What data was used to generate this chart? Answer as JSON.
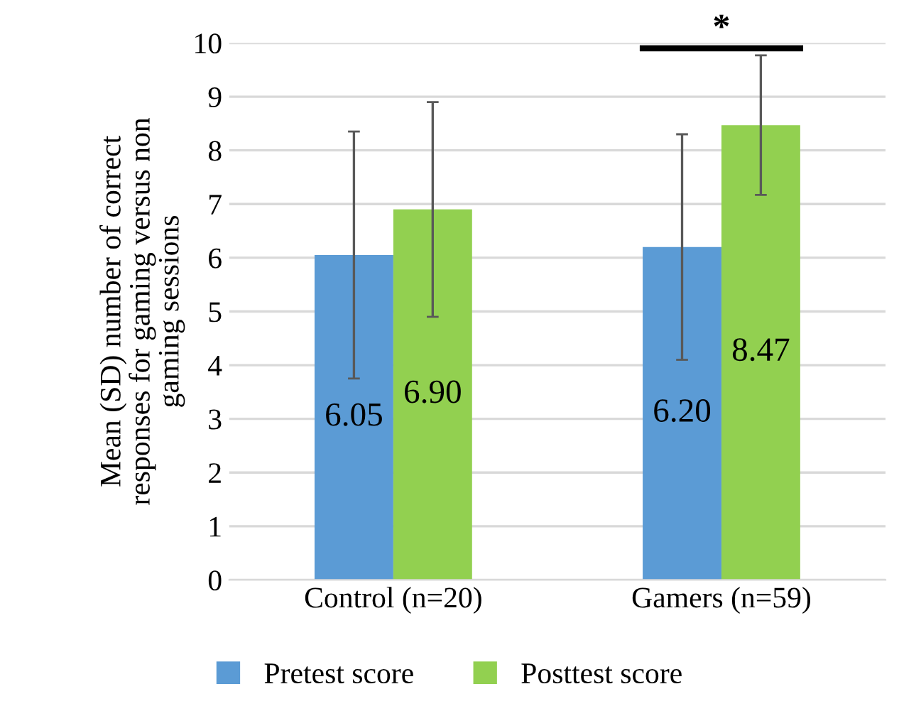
{
  "chart_data": {
    "type": "bar",
    "ylabel": "Mean (SD) number of correct\nresponses for gaming versus non\ngaming sessions",
    "categories": [
      "Control (n=20)",
      "Gamers (n=59)"
    ],
    "series": [
      {
        "name": "Pretest score",
        "color": "#5b9bd5",
        "values": [
          6.05,
          6.2
        ],
        "value_labels": [
          "6.05",
          "6.20"
        ],
        "errors": [
          2.3,
          2.1
        ]
      },
      {
        "name": "Posttest score",
        "color": "#92d050",
        "values": [
          6.9,
          8.47
        ],
        "value_labels": [
          "6.90",
          "8.47"
        ],
        "errors": [
          2.0,
          1.3
        ]
      }
    ],
    "ylim": [
      0,
      10
    ],
    "yticks": [
      0,
      1,
      2,
      3,
      4,
      5,
      6,
      7,
      8,
      9,
      10
    ],
    "grid": "y",
    "legend": "bottom",
    "annotations": [
      "*"
    ]
  }
}
